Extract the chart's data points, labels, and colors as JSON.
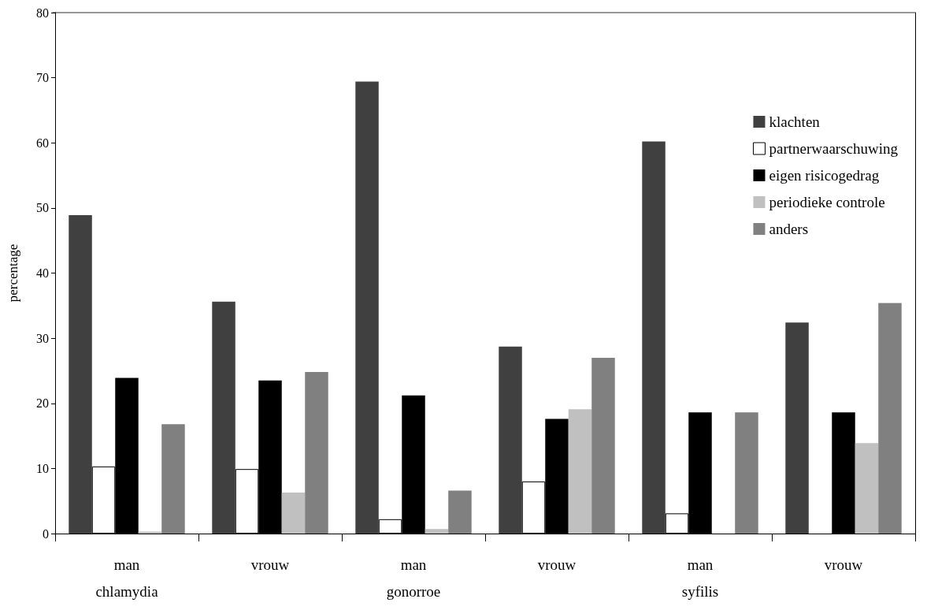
{
  "chart_data": {
    "type": "bar",
    "ylabel": "percentage",
    "categories": [
      "man\nchlamydia",
      "vrouw",
      "man\ngonorroe",
      "vrouw",
      "man\nsyfilis",
      "vrouw"
    ],
    "series": [
      {
        "name": "klachten",
        "color": "#404040",
        "values": [
          48.9,
          35.6,
          69.4,
          28.7,
          60.2,
          32.4
        ]
      },
      {
        "name": "partnerwaarschuwing",
        "color": "#ffffff",
        "values": [
          10.3,
          9.9,
          2.2,
          8.0,
          3.1,
          0
        ]
      },
      {
        "name": "eigen risicogedrag",
        "color": "#000000",
        "values": [
          23.9,
          23.5,
          21.2,
          17.6,
          18.6,
          18.6
        ]
      },
      {
        "name": "periodieke controle",
        "color": "#c0c0c0",
        "values": [
          0.3,
          6.3,
          0.7,
          19.1,
          0,
          13.9
        ]
      },
      {
        "name": "anders",
        "color": "#808080",
        "values": [
          16.8,
          24.8,
          6.6,
          27.0,
          18.6,
          35.4
        ]
      }
    ],
    "ylim": [
      0,
      80
    ],
    "yticks": [
      0,
      10,
      20,
      30,
      40,
      50,
      60,
      70,
      80
    ],
    "grid": false,
    "legend": "top right"
  }
}
